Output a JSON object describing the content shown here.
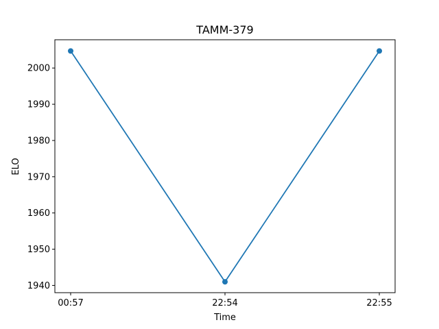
{
  "chart_data": {
    "type": "line",
    "title": "TAMM-379",
    "xlabel": "Time",
    "ylabel": "ELO",
    "x": [
      "00:57",
      "22:54",
      "22:55"
    ],
    "series": [
      {
        "values": [
          2004.7,
          1941.0,
          2004.7
        ],
        "color": "#1f77b4"
      }
    ],
    "ylim": [
      1938.0,
      2007.8
    ],
    "yticks": [
      1940,
      1950,
      1960,
      1970,
      1980,
      1990,
      2000
    ],
    "grid": false,
    "marker": "circle"
  }
}
